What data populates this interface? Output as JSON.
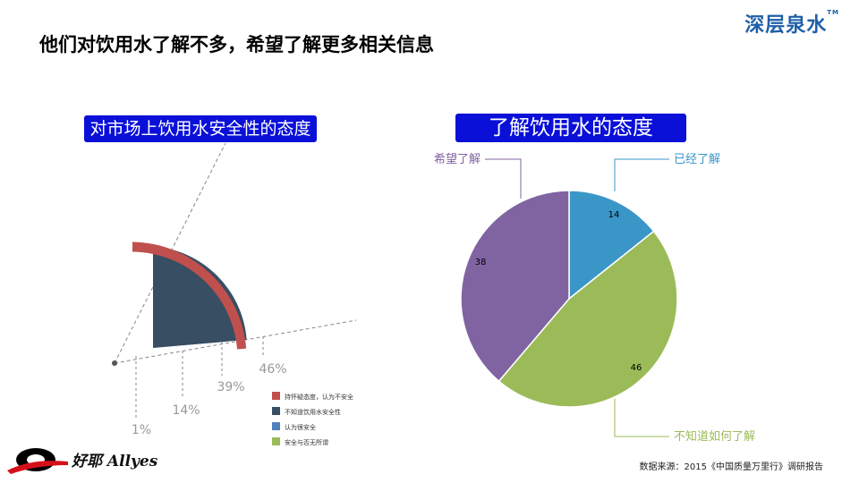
{
  "brand": {
    "name": "深层泉水",
    "tm": "TM"
  },
  "page_title": "他们对饮用水了解不多，希望了解更多相关信息",
  "source_note": "数据来源：2015《中国质量万里行》调研报告",
  "company": {
    "name": "好耶 Allyes"
  },
  "colors": {
    "red": "#c0504d",
    "navy": "#384e63",
    "blue": "#4f81bd",
    "green": "#9bbb59",
    "purple": "#8064a2",
    "cyan": "#3b96c8",
    "title_bg": "#0a10d8"
  },
  "chart_data": [
    {
      "type": "area",
      "style": "3d-radial-fan",
      "title": "对市场上饮用水安全性的态度",
      "series": [
        {
          "name": "持怀疑态度，认为不安全",
          "value": 46,
          "label": "46%",
          "color": "#c0504d"
        },
        {
          "name": "不知道饮用水安全性",
          "value": 39,
          "label": "39%",
          "color": "#384e63"
        },
        {
          "name": "认为很安全",
          "value": 14,
          "label": "14%",
          "color": "#4f81bd"
        },
        {
          "name": "安全与否无所谓",
          "value": 1,
          "label": "1%",
          "color": "#9bbb59"
        }
      ],
      "legend_position": "bottom-right"
    },
    {
      "type": "pie",
      "title": "了解饮用水的态度",
      "slices": [
        {
          "name": "已经了解",
          "value": 14,
          "color": "#3b96c8"
        },
        {
          "name": "不知道如何了解",
          "value": 46,
          "color": "#9bbb59"
        },
        {
          "name": "希望了解",
          "value": 38,
          "color": "#8064a2"
        }
      ]
    }
  ]
}
